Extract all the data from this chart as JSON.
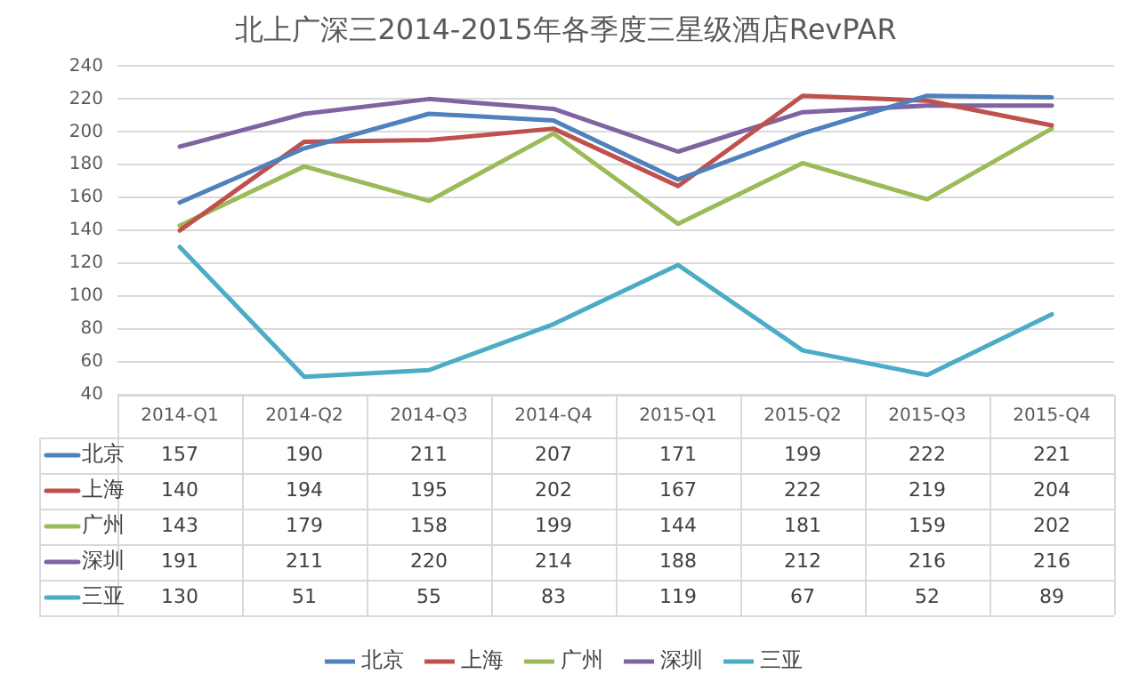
{
  "chart_data": {
    "type": "line",
    "title": "北上广深三2014-2015年各季度三星级酒店RevPAR",
    "categories": [
      "2014-Q1",
      "2014-Q2",
      "2014-Q3",
      "2014-Q4",
      "2015-Q1",
      "2015-Q2",
      "2015-Q3",
      "2015-Q4"
    ],
    "series": [
      {
        "name": "北京",
        "color": "#4f81bd",
        "values": [
          157,
          190,
          211,
          207,
          171,
          199,
          222,
          221
        ]
      },
      {
        "name": "上海",
        "color": "#c0504d",
        "values": [
          140,
          194,
          195,
          202,
          167,
          222,
          219,
          204
        ]
      },
      {
        "name": "广州",
        "color": "#9bbb59",
        "values": [
          143,
          179,
          158,
          199,
          144,
          181,
          159,
          202
        ]
      },
      {
        "name": "深圳",
        "color": "#8064a2",
        "values": [
          191,
          211,
          220,
          214,
          188,
          212,
          216,
          216
        ]
      },
      {
        "name": "三亚",
        "color": "#4bacc6",
        "values": [
          130,
          51,
          55,
          83,
          119,
          67,
          52,
          89
        ]
      }
    ],
    "ylim": [
      40,
      240
    ],
    "yticks": [
      40,
      60,
      80,
      100,
      120,
      140,
      160,
      180,
      200,
      220,
      240
    ],
    "grid": "y",
    "legend": "bottom",
    "marker": "none",
    "line_style": "solid",
    "data_labels": true
  }
}
